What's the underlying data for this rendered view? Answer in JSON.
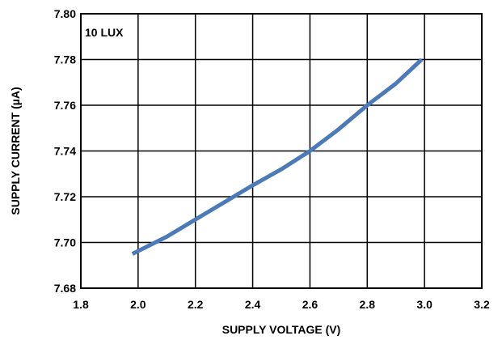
{
  "chart_data": {
    "type": "line",
    "title": "",
    "annotation": "10 LUX",
    "xlabel": "SUPPLY VOLTAGE (V)",
    "ylabel": "SUPPLY CURRENT (µA)",
    "xlim": [
      1.8,
      3.2
    ],
    "ylim": [
      7.68,
      7.8
    ],
    "x_ticks": [
      1.8,
      2.0,
      2.2,
      2.4,
      2.6,
      2.8,
      3.0,
      3.2
    ],
    "y_ticks": [
      7.68,
      7.7,
      7.72,
      7.74,
      7.76,
      7.78,
      7.8
    ],
    "x_tick_labels": [
      "1.8",
      "2.0",
      "2.2",
      "2.4",
      "2.6",
      "2.8",
      "3.0",
      "3.2"
    ],
    "y_tick_labels": [
      "7.68",
      "7.70",
      "7.72",
      "7.74",
      "7.76",
      "7.78",
      "7.80"
    ],
    "grid": true,
    "line_color": "#4a7ab8",
    "series": [
      {
        "x": [
          1.98,
          2.1,
          2.2,
          2.3,
          2.4,
          2.5,
          2.6,
          2.7,
          2.8,
          2.9,
          2.99
        ],
        "y": [
          7.695,
          7.7025,
          7.71,
          7.7175,
          7.725,
          7.732,
          7.74,
          7.7495,
          7.76,
          7.7695,
          7.78
        ]
      }
    ]
  }
}
